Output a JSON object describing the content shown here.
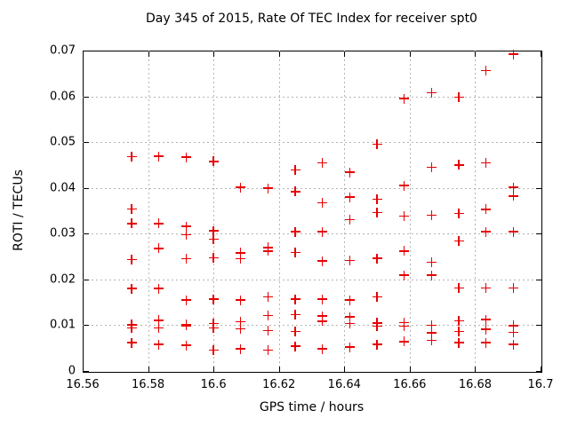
{
  "chart_data": {
    "type": "scatter",
    "title": "Day 345 of 2015, Rate Of TEC Index for receiver spt0",
    "xlabel": "GPS time / hours",
    "ylabel": "ROTI / TECUs",
    "xlim": [
      16.56,
      16.7
    ],
    "ylim": [
      0,
      0.07
    ],
    "xticks": [
      16.56,
      16.58,
      16.6,
      16.62,
      16.64,
      16.66,
      16.68,
      16.7
    ],
    "xtick_labels": [
      "16.56",
      "16.58",
      "16.6",
      "16.62",
      "16.64",
      "16.66",
      "16.68",
      "16.7"
    ],
    "yticks": [
      0,
      0.01,
      0.02,
      0.03,
      0.04,
      0.05,
      0.06,
      0.07
    ],
    "ytick_labels": [
      "0",
      "0.01",
      "0.02",
      "0.03",
      "0.04",
      "0.05",
      "0.06",
      "0.07"
    ],
    "grid": true,
    "legend": "none",
    "marker": "plus",
    "colors": {
      "marker": "#e60000",
      "grid": "#b4b4b4",
      "frame": "#000000",
      "background": "#ffffff",
      "text": "#000000"
    },
    "points": [
      [
        16.575,
        0.0468
      ],
      [
        16.575,
        0.0354
      ],
      [
        16.575,
        0.0322
      ],
      [
        16.575,
        0.0243
      ],
      [
        16.575,
        0.018
      ],
      [
        16.575,
        0.0101
      ],
      [
        16.575,
        0.0094
      ],
      [
        16.575,
        0.0062
      ],
      [
        16.5833,
        0.0469
      ],
      [
        16.5833,
        0.0322
      ],
      [
        16.5833,
        0.0268
      ],
      [
        16.5833,
        0.018
      ],
      [
        16.5833,
        0.0111
      ],
      [
        16.5833,
        0.0094
      ],
      [
        16.5833,
        0.0058
      ],
      [
        16.5917,
        0.0467
      ],
      [
        16.5917,
        0.0316
      ],
      [
        16.5917,
        0.0298
      ],
      [
        16.5917,
        0.0245
      ],
      [
        16.5917,
        0.0155
      ],
      [
        16.5917,
        0.0102
      ],
      [
        16.5917,
        0.0099
      ],
      [
        16.5917,
        0.0056
      ],
      [
        16.6,
        0.0458
      ],
      [
        16.6,
        0.0306
      ],
      [
        16.6,
        0.0288
      ],
      [
        16.6,
        0.0247
      ],
      [
        16.6,
        0.0157
      ],
      [
        16.6,
        0.0104
      ],
      [
        16.6,
        0.0094
      ],
      [
        16.6,
        0.0046
      ],
      [
        16.6083,
        0.0401
      ],
      [
        16.6083,
        0.0258
      ],
      [
        16.6083,
        0.0245
      ],
      [
        16.6083,
        0.0155
      ],
      [
        16.6083,
        0.0108
      ],
      [
        16.6083,
        0.0092
      ],
      [
        16.6083,
        0.0048
      ],
      [
        16.6167,
        0.0399
      ],
      [
        16.6167,
        0.027
      ],
      [
        16.6167,
        0.0262
      ],
      [
        16.6167,
        0.0162
      ],
      [
        16.6167,
        0.0121
      ],
      [
        16.6167,
        0.0088
      ],
      [
        16.6167,
        0.0046
      ],
      [
        16.625,
        0.0439
      ],
      [
        16.625,
        0.0392
      ],
      [
        16.625,
        0.0304
      ],
      [
        16.625,
        0.0259
      ],
      [
        16.625,
        0.0157
      ],
      [
        16.625,
        0.0123
      ],
      [
        16.625,
        0.0086
      ],
      [
        16.625,
        0.0054
      ],
      [
        16.6333,
        0.0455
      ],
      [
        16.6333,
        0.0367
      ],
      [
        16.6333,
        0.0304
      ],
      [
        16.6333,
        0.024
      ],
      [
        16.6333,
        0.0157
      ],
      [
        16.6333,
        0.012
      ],
      [
        16.6333,
        0.0109
      ],
      [
        16.6333,
        0.0048
      ],
      [
        16.6417,
        0.0434
      ],
      [
        16.6417,
        0.038
      ],
      [
        16.6417,
        0.0331
      ],
      [
        16.6417,
        0.0241
      ],
      [
        16.6417,
        0.0155
      ],
      [
        16.6417,
        0.0118
      ],
      [
        16.6417,
        0.0104
      ],
      [
        16.6417,
        0.0052
      ],
      [
        16.65,
        0.0495
      ],
      [
        16.65,
        0.0375
      ],
      [
        16.65,
        0.0346
      ],
      [
        16.65,
        0.0246
      ],
      [
        16.65,
        0.0162
      ],
      [
        16.65,
        0.0105
      ],
      [
        16.65,
        0.0098
      ],
      [
        16.65,
        0.0058
      ],
      [
        16.6583,
        0.0595
      ],
      [
        16.6583,
        0.0405
      ],
      [
        16.6583,
        0.0338
      ],
      [
        16.6583,
        0.0262
      ],
      [
        16.6583,
        0.0209
      ],
      [
        16.6583,
        0.0106
      ],
      [
        16.6583,
        0.0098
      ],
      [
        16.6583,
        0.0064
      ],
      [
        16.6667,
        0.0608
      ],
      [
        16.6667,
        0.0445
      ],
      [
        16.6667,
        0.034
      ],
      [
        16.6667,
        0.0238
      ],
      [
        16.6667,
        0.0209
      ],
      [
        16.6667,
        0.01
      ],
      [
        16.6667,
        0.0083
      ],
      [
        16.6667,
        0.0067
      ],
      [
        16.675,
        0.0598
      ],
      [
        16.675,
        0.045
      ],
      [
        16.675,
        0.0344
      ],
      [
        16.675,
        0.0284
      ],
      [
        16.675,
        0.0181
      ],
      [
        16.675,
        0.011
      ],
      [
        16.675,
        0.0086
      ],
      [
        16.675,
        0.0062
      ],
      [
        16.6833,
        0.0656
      ],
      [
        16.6833,
        0.0455
      ],
      [
        16.6833,
        0.0353
      ],
      [
        16.6833,
        0.0304
      ],
      [
        16.6833,
        0.0181
      ],
      [
        16.6833,
        0.0112
      ],
      [
        16.6833,
        0.0091
      ],
      [
        16.6833,
        0.0062
      ],
      [
        16.6917,
        0.0692
      ],
      [
        16.6917,
        0.0401
      ],
      [
        16.6917,
        0.0382
      ],
      [
        16.6917,
        0.0304
      ],
      [
        16.6917,
        0.0181
      ],
      [
        16.6917,
        0.0099
      ],
      [
        16.6917,
        0.0084
      ],
      [
        16.6917,
        0.0058
      ]
    ]
  }
}
